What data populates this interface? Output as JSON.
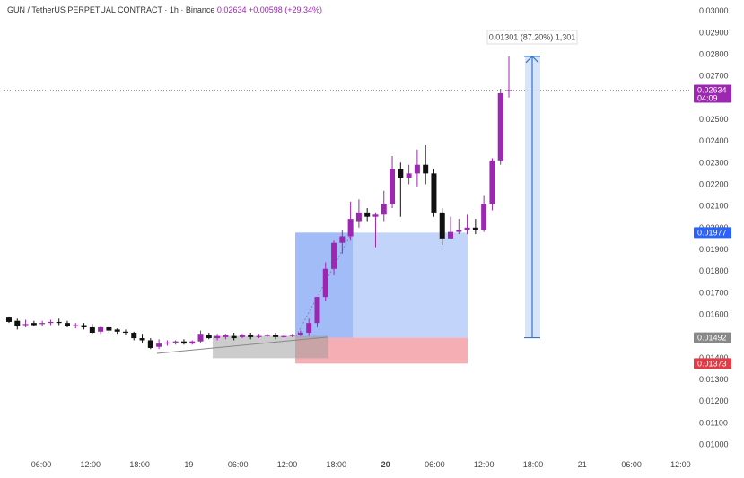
{
  "header": {
    "symbol": "GUN / TetherUS PERPETUAL CONTRACT · 1h · Binance",
    "price": "0.02634",
    "change": "+0.00598 (+29.34%)"
  },
  "colors": {
    "bull": "#9c27b0",
    "bear": "#111111",
    "target_zone": "#7aa0f5",
    "stop_zone": "#f28b95",
    "measure": "#3d73c4",
    "price_tag": "#9c27b0",
    "blue_tag": "#2962ff",
    "red_tag": "#e53945",
    "grey_tag": "#888888"
  },
  "chart_data": {
    "type": "candlestick",
    "x_axis_labels": [
      "06:00",
      "12:00",
      "18:00",
      "19",
      "06:00",
      "12:00",
      "18:00",
      "20",
      "06:00",
      "12:00",
      "18:00",
      "21",
      "06:00",
      "12:00"
    ],
    "y_axis_labels": [
      "0.03000",
      "0.02900",
      "0.02800",
      "0.02700",
      "0.02600",
      "0.02500",
      "0.02400",
      "0.02300",
      "0.02200",
      "0.02100",
      "0.02000",
      "0.01900",
      "0.01800",
      "0.01700",
      "0.01600",
      "0.01500",
      "0.01400",
      "0.01300",
      "0.01200",
      "0.01100",
      "0.01000"
    ],
    "ylim": [
      0.0094,
      0.0305
    ],
    "candles": [
      [
        0.01585,
        0.0159,
        0.01565,
        0.0156
      ],
      [
        0.0157,
        0.0158,
        0.01545,
        0.0153
      ],
      [
        0.0155,
        0.01575,
        0.01555,
        0.0154
      ],
      [
        0.0156,
        0.0157,
        0.0155,
        0.01545
      ],
      [
        0.01555,
        0.0157,
        0.0156,
        0.01545
      ],
      [
        0.0156,
        0.01575,
        0.01565,
        0.0155
      ],
      [
        0.01565,
        0.0158,
        0.0156,
        0.0155
      ],
      [
        0.0156,
        0.0157,
        0.01545,
        0.0154
      ],
      [
        0.01545,
        0.0156,
        0.0155,
        0.01535
      ],
      [
        0.0155,
        0.0156,
        0.0154,
        0.0153
      ],
      [
        0.0154,
        0.01555,
        0.01515,
        0.0151
      ],
      [
        0.0152,
        0.01545,
        0.0154,
        0.0151
      ],
      [
        0.0154,
        0.01545,
        0.01525,
        0.01515
      ],
      [
        0.0153,
        0.01535,
        0.0152,
        0.0151
      ],
      [
        0.0152,
        0.0153,
        0.01515,
        0.01505
      ],
      [
        0.01515,
        0.0152,
        0.0149,
        0.0148
      ],
      [
        0.0149,
        0.0151,
        0.0148,
        0.0147
      ],
      [
        0.0148,
        0.0149,
        0.01445,
        0.0144
      ],
      [
        0.0145,
        0.01485,
        0.01465,
        0.0144
      ],
      [
        0.01465,
        0.0148,
        0.0147,
        0.01455
      ],
      [
        0.0147,
        0.0148,
        0.01475,
        0.0146
      ],
      [
        0.01475,
        0.01485,
        0.01465,
        0.0146
      ],
      [
        0.01465,
        0.0148,
        0.01475,
        0.0146
      ],
      [
        0.01475,
        0.01525,
        0.0151,
        0.0147
      ],
      [
        0.01505,
        0.01515,
        0.0149,
        0.01485
      ],
      [
        0.0149,
        0.0151,
        0.015,
        0.0148
      ],
      [
        0.01495,
        0.0151,
        0.01505,
        0.01485
      ],
      [
        0.015,
        0.01515,
        0.0149,
        0.0148
      ],
      [
        0.01495,
        0.0151,
        0.01505,
        0.0149
      ],
      [
        0.01505,
        0.01515,
        0.01495,
        0.01485
      ],
      [
        0.01495,
        0.0151,
        0.015,
        0.0149
      ],
      [
        0.015,
        0.0151,
        0.01505,
        0.01495
      ],
      [
        0.01505,
        0.01515,
        0.01495,
        0.01485
      ],
      [
        0.01495,
        0.01505,
        0.015,
        0.0149
      ],
      [
        0.015,
        0.0151,
        0.01505,
        0.01495
      ],
      [
        0.01505,
        0.01525,
        0.01515,
        0.015
      ],
      [
        0.01515,
        0.0158,
        0.0156,
        0.015
      ],
      [
        0.0156,
        0.0168,
        0.0168,
        0.0154
      ],
      [
        0.0168,
        0.0184,
        0.0181,
        0.0166
      ],
      [
        0.0181,
        0.0194,
        0.0193,
        0.0178
      ],
      [
        0.0193,
        0.0199,
        0.0196,
        0.0188
      ],
      [
        0.0196,
        0.0212,
        0.0204,
        0.0194
      ],
      [
        0.0203,
        0.0213,
        0.0207,
        0.02
      ],
      [
        0.0207,
        0.0209,
        0.0205,
        0.0203
      ],
      [
        0.0205,
        0.0207,
        0.0206,
        0.0191
      ],
      [
        0.0206,
        0.0217,
        0.0211,
        0.0203
      ],
      [
        0.0211,
        0.0233,
        0.0227,
        0.0209
      ],
      [
        0.0227,
        0.023,
        0.0223,
        0.0205
      ],
      [
        0.0223,
        0.0229,
        0.0225,
        0.022
      ],
      [
        0.0225,
        0.0236,
        0.0229,
        0.0219
      ],
      [
        0.0229,
        0.0238,
        0.0225,
        0.022
      ],
      [
        0.0225,
        0.0227,
        0.0207,
        0.0205
      ],
      [
        0.0207,
        0.0209,
        0.0195,
        0.0192
      ],
      [
        0.0195,
        0.0205,
        0.0198,
        0.0195
      ],
      [
        0.0198,
        0.0204,
        0.0199,
        0.0197
      ],
      [
        0.0199,
        0.0206,
        0.02,
        0.0197
      ],
      [
        0.02,
        0.0204,
        0.0199,
        0.0197
      ],
      [
        0.0199,
        0.0215,
        0.0211,
        0.0198
      ],
      [
        0.0211,
        0.0232,
        0.0231,
        0.0208
      ],
      [
        0.0231,
        0.0264,
        0.0262,
        0.0229
      ],
      [
        0.0263,
        0.0279,
        0.02634,
        0.026
      ]
    ],
    "measure_label": "0.01301 (87.20%) 1,301",
    "long_position": {
      "entry": 0.01492,
      "target": 0.01977,
      "stop": 0.01373
    },
    "price_tags": [
      {
        "value": "0.02634",
        "sub": "04:09",
        "color": "price_tag"
      },
      {
        "value": "0.01977",
        "color": "blue_tag"
      },
      {
        "value": "0.01492",
        "color": "grey_tag"
      },
      {
        "value": "0.01373",
        "color": "red_tag"
      }
    ]
  }
}
